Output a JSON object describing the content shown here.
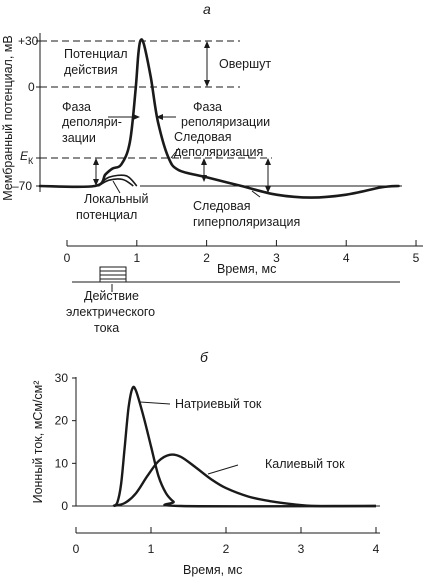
{
  "chart_data": [
    {
      "panel": "а",
      "type": "line",
      "ylabel": "Мембранный потенциал, мВ",
      "xlabel": "Время, мс",
      "x_ticks": [
        "0",
        "1",
        "2",
        "3",
        "4",
        "5"
      ],
      "xlim": [
        0,
        5
      ],
      "y_ticks": [
        "+30",
        "0",
        "E",
        "–70"
      ],
      "y_tick_values": [
        30,
        0,
        -55,
        -70
      ],
      "ek_subscript": "К",
      "series": [
        {
          "points": [
            [
              -1,
              -70
            ],
            [
              0.4,
              -70
            ],
            [
              0.55,
              -62
            ],
            [
              0.65,
              -58
            ],
            [
              0.78,
              -55
            ],
            [
              0.9,
              -40
            ],
            [
              0.98,
              -5
            ],
            [
              1.02,
              20
            ],
            [
              1.05,
              30
            ],
            [
              1.1,
              28
            ],
            [
              1.2,
              5
            ],
            [
              1.3,
              -25
            ],
            [
              1.45,
              -50
            ],
            [
              1.6,
              -59
            ],
            [
              2.0,
              -64
            ],
            [
              2.5,
              -70
            ],
            [
              3.0,
              -76
            ],
            [
              3.5,
              -78
            ],
            [
              4.0,
              -76
            ],
            [
              4.5,
              -71
            ],
            [
              4.75,
              -70
            ]
          ]
        }
      ],
      "local_potential": [
        [
          0.45,
          -70
        ],
        [
          0.6,
          -64
        ],
        [
          0.85,
          -63
        ],
        [
          1.0,
          -70
        ]
      ],
      "local_potential_inner": [
        [
          0.45,
          -70
        ],
        [
          0.6,
          -66
        ],
        [
          0.8,
          -65.5
        ],
        [
          0.95,
          -70
        ]
      ],
      "annotations": {
        "ap": [
          "Потенциал",
          "действия"
        ],
        "overshoot": "Овершут",
        "depol": [
          "Фаза",
          "деполяри-",
          "зации"
        ],
        "repol": [
          "Фаза",
          "реполяризации"
        ],
        "trace_depol": [
          "Следовая",
          "деполяризация"
        ],
        "local": [
          "Локальный",
          "потенциал"
        ],
        "trace_hyper": [
          "Следовая",
          "гиперполяризация"
        ],
        "stimulus": [
          "Действие",
          "электрического",
          "тока"
        ]
      }
    },
    {
      "panel": "б",
      "type": "line",
      "ylabel": "Ионный ток, мСм/см²",
      "xlabel": "Время, мс",
      "x_ticks": [
        "0",
        "1",
        "2",
        "3",
        "4"
      ],
      "xlim": [
        0,
        4
      ],
      "y_ticks": [
        "30",
        "20",
        "10",
        "0"
      ],
      "ylim": [
        0,
        30
      ],
      "series": [
        {
          "name": "Натриевый ток",
          "points": [
            [
              0.5,
              0
            ],
            [
              0.55,
              0.8
            ],
            [
              0.6,
              5
            ],
            [
              0.65,
              14
            ],
            [
              0.7,
              23
            ],
            [
              0.75,
              27.5
            ],
            [
              0.8,
              27
            ],
            [
              0.9,
              21
            ],
            [
              1.0,
              14
            ],
            [
              1.1,
              7
            ],
            [
              1.2,
              3
            ],
            [
              1.3,
              1
            ],
            [
              1.4,
              0
            ],
            [
              4,
              0
            ]
          ]
        },
        {
          "name": "Калиевый ток",
          "points": [
            [
              0.5,
              0
            ],
            [
              0.65,
              0.7
            ],
            [
              0.8,
              3
            ],
            [
              0.95,
              7
            ],
            [
              1.1,
              10.5
            ],
            [
              1.25,
              12
            ],
            [
              1.4,
              11.5
            ],
            [
              1.6,
              9
            ],
            [
              1.8,
              6.3
            ],
            [
              2.0,
              4.2
            ],
            [
              2.3,
              2.2
            ],
            [
              2.6,
              1.1
            ],
            [
              2.9,
              0.4
            ],
            [
              3.2,
              0
            ],
            [
              4,
              0
            ]
          ]
        }
      ]
    }
  ]
}
